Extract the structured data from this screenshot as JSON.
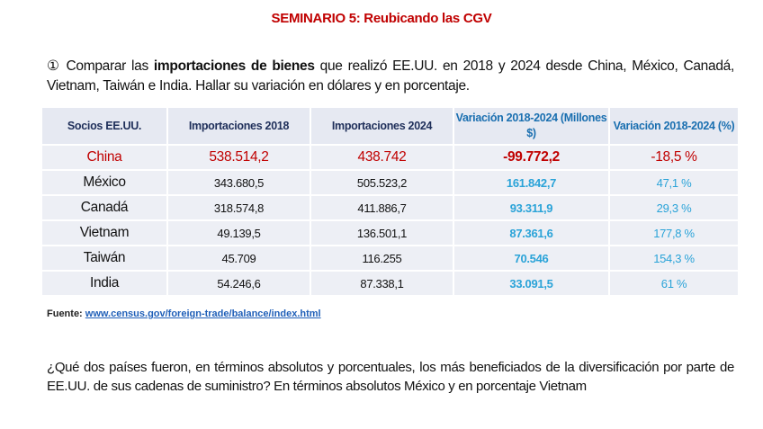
{
  "title": "SEMINARIO 5: Reubicando las CGV",
  "intro": {
    "number": "①",
    "pre": " Comparar las ",
    "bold": "importaciones de bienes",
    "post": " que realizó EE.UU. en 2018 y 2024 desde China, México, Canadá, Vietnam, Taiwán e India. Hallar su variación en dólares y en porcentaje."
  },
  "table": {
    "headers": [
      "Socios EE.UU.",
      "Importaciones 2018",
      "Importaciones 2024",
      "Variación 2018-2024 (Millones $)",
      "Variación 2018-2024 (%)"
    ],
    "rows": [
      [
        "China",
        "538.514,2",
        "438.742",
        "-99.772,2",
        "-18,5 %"
      ],
      [
        "México",
        "343.680,5",
        "505.523,2",
        "161.842,7",
        "47,1 %"
      ],
      [
        "Canadá",
        "318.574,8",
        "411.886,7",
        "93.311,9",
        "29,3 %"
      ],
      [
        "Vietnam",
        "49.139,5",
        "136.501,1",
        "87.361,6",
        "177,8 %"
      ],
      [
        "Taiwán",
        "45.709",
        "116.255",
        "70.546",
        "154,3 %"
      ],
      [
        "India",
        "54.246,6",
        "87.338,1",
        "33.091,5",
        "61 %"
      ]
    ]
  },
  "source": {
    "label": "Fuente: ",
    "link": "www.census.gov/foreign-trade/balance/index.html"
  },
  "question": "¿Qué dos países fueron, en términos absolutos y porcentuales, los más beneficiados de la diversificación por parte de EE.UU. de sus cadenas de suministro? En términos absolutos México y en porcentaje Vietnam"
}
